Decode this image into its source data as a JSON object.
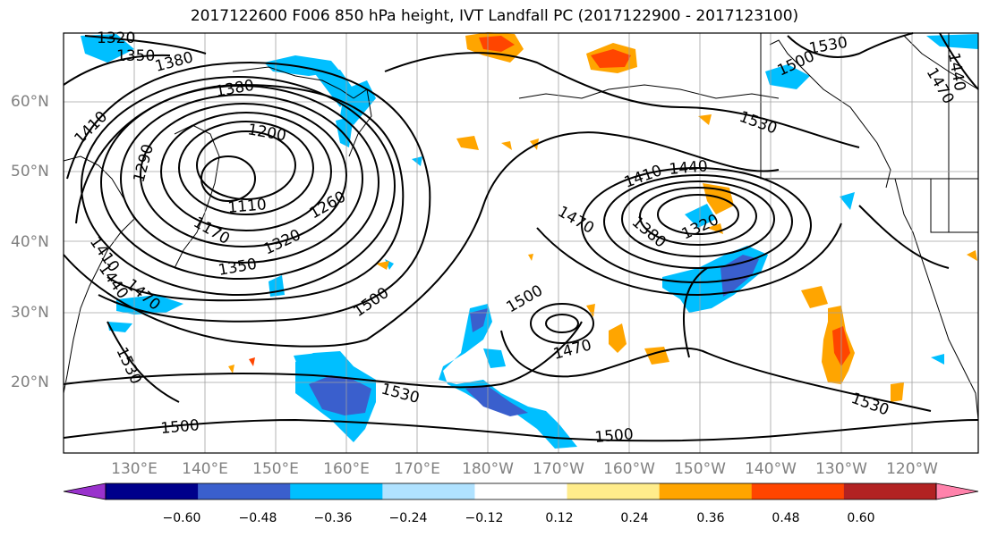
{
  "title": "2017122600 F006 850 hPa height, IVT Landfall PC (2017122900 - 2017123100)",
  "lat_labels": [
    "60°N",
    "50°N",
    "40°N",
    "30°N",
    "20°N"
  ],
  "lon_labels": [
    "130°E",
    "140°E",
    "150°E",
    "160°E",
    "170°E",
    "180°W",
    "170°W",
    "160°W",
    "150°W",
    "140°W",
    "130°W",
    "120°W"
  ],
  "colorbar": {
    "ticks": [
      "−0.60",
      "−0.48",
      "−0.36",
      "−0.24",
      "−0.12",
      "0.12",
      "0.24",
      "0.36",
      "0.48",
      "0.60"
    ],
    "colors": [
      "#9932cc",
      "#00008b",
      "#3a5fcd",
      "#00bfff",
      "#b0e2ff",
      "#ffffff",
      "#ffec8b",
      "#ffa500",
      "#ff4500",
      "#b22222",
      "#ff82ab"
    ]
  },
  "contour_labels": [
    "1320",
    "1350",
    "1380",
    "1380",
    "1410",
    "1200",
    "1290",
    "1110",
    "1170",
    "1260",
    "1320",
    "1350",
    "1410",
    "1440",
    "1470",
    "1500",
    "1530",
    "1500",
    "1530",
    "1410",
    "1440",
    "1470",
    "1380",
    "1320",
    "1500",
    "1470",
    "1530",
    "1500",
    "1500",
    "1530",
    "1470",
    "1440"
  ]
}
